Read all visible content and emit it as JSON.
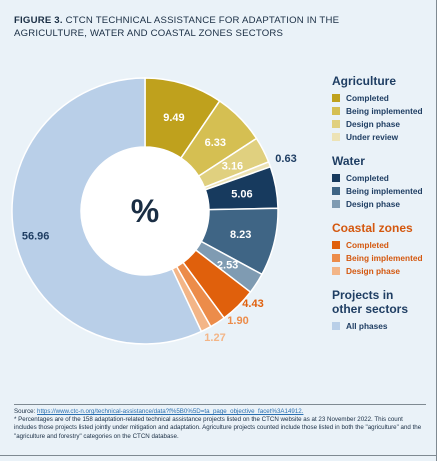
{
  "figure": {
    "label": "FIGURE 3.",
    "title": "CTCN TECHNICAL ASSISTANCE FOR ADAPTATION IN THE AGRICULTURE, WATER AND COASTAL ZONES SECTORS"
  },
  "chart_data": {
    "type": "pie",
    "center_label": "%",
    "slices": [
      {
        "group": "Agriculture",
        "name": "Completed",
        "value": 9.49,
        "label": "9.49",
        "color": "#bfa11d",
        "label_color": "#ffffff"
      },
      {
        "group": "Agriculture",
        "name": "Being implemented",
        "value": 6.33,
        "label": "6.33",
        "color": "#d5bf52",
        "label_color": "#ffffff"
      },
      {
        "group": "Agriculture",
        "name": "Design phase",
        "value": 3.16,
        "label": "3.16",
        "color": "#e0d07f",
        "label_color": "#ffffff"
      },
      {
        "group": "Agriculture",
        "name": "Under review",
        "value": 0.63,
        "label": "0.63",
        "color": "#ede3b6",
        "label_color": "#1f3e63"
      },
      {
        "group": "Water",
        "name": "Completed",
        "value": 5.06,
        "label": "5.06",
        "color": "#173a5e",
        "label_color": "#ffffff"
      },
      {
        "group": "Water",
        "name": "Being implemented",
        "value": 8.23,
        "label": "8.23",
        "color": "#3f6585",
        "label_color": "#ffffff"
      },
      {
        "group": "Water",
        "name": "Design phase",
        "value": 2.53,
        "label": "2.53",
        "color": "#7f9bb2",
        "label_color": "#ffffff"
      },
      {
        "group": "Coastal zones",
        "name": "Completed",
        "value": 4.43,
        "label": "4.43",
        "color": "#e0600c",
        "label_color": "#e0600c"
      },
      {
        "group": "Coastal zones",
        "name": "Being implemented",
        "value": 1.9,
        "label": "1.90",
        "color": "#ec8c4a",
        "label_color": "#ec8c4a"
      },
      {
        "group": "Coastal zones",
        "name": "Design phase",
        "value": 1.27,
        "label": "1.27",
        "color": "#f3b587",
        "label_color": "#f3b587"
      },
      {
        "group": "Projects in other sectors",
        "name": "All phases",
        "value": 56.96,
        "label": "56.96",
        "color": "#b9cfe8",
        "label_color": "#1f3e63"
      }
    ]
  },
  "legend": [
    {
      "title": "Agriculture",
      "items": [
        {
          "label": "Completed",
          "color": "#bfa11d"
        },
        {
          "label": "Being implemented",
          "color": "#d5bf52"
        },
        {
          "label": "Design phase",
          "color": "#e0d07f"
        },
        {
          "label": "Under review",
          "color": "#ede3b6"
        }
      ]
    },
    {
      "title": "Water",
      "items": [
        {
          "label": "Completed",
          "color": "#173a5e"
        },
        {
          "label": "Being implemented",
          "color": "#3f6585"
        },
        {
          "label": "Design phase",
          "color": "#7f9bb2"
        }
      ]
    },
    {
      "title": "Coastal zones",
      "items": [
        {
          "label": "Completed",
          "color": "#e0600c"
        },
        {
          "label": "Being implemented",
          "color": "#ec8c4a"
        },
        {
          "label": "Design phase",
          "color": "#f3b587"
        }
      ]
    },
    {
      "title": "Projects in other sectors",
      "items": [
        {
          "label": "All phases",
          "color": "#b9cfe8"
        }
      ]
    }
  ],
  "footer": {
    "source_prefix": "Source: ",
    "source_link": "https://www.ctc-n.org/technical-assistance/data?f%5B0%5D=ta_page_objective_facet%3A14912.",
    "note1": "* Percentages are of the 158 adaptation-related technical assistance projects listed on the CTCN website as at 23 November 2022. This count includes those projects listed jointly under mitigation and adaptation. Agriculture projects counted include those listed in both the \"agriculture\" and the \"agriculture and forestry\" categories on the CTCN database."
  }
}
